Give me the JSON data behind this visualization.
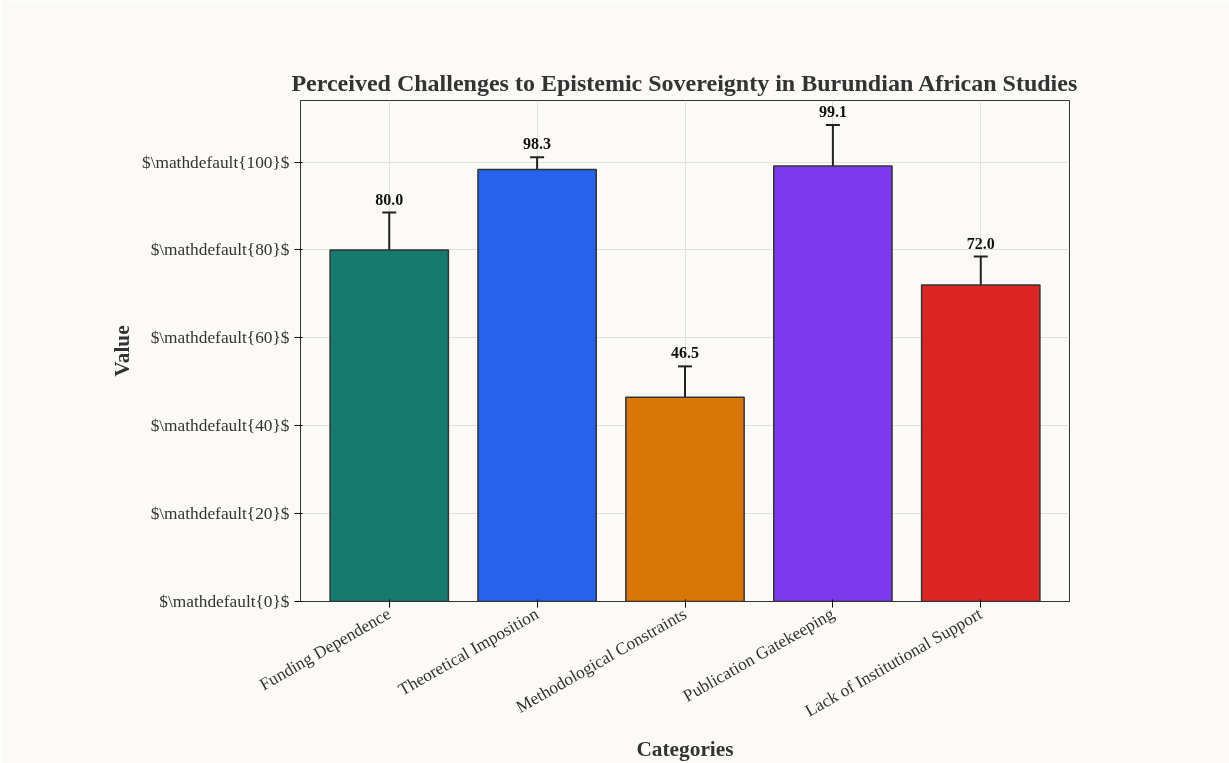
{
  "chart_data": {
    "type": "bar",
    "title": "Perceived Challenges to Epistemic Sovereignty in Burundian African Studies",
    "xlabel": "Categories",
    "ylabel": "Value",
    "categories": [
      "Funding Dependence",
      "Theoretical Imposition",
      "Methodological Constraints",
      "Publication Gatekeeping",
      "Lack of Institutional Support"
    ],
    "values": [
      80.0,
      98.3,
      46.5,
      99.1,
      72.0
    ],
    "errors": [
      8.5,
      2.8,
      7,
      9.3,
      6.5
    ],
    "colors": [
      "#167a6e",
      "#2563eb",
      "#d97706",
      "#7c3aed",
      "#dc2626"
    ],
    "ylim": [
      0,
      114
    ],
    "yticks": [
      {
        "value": 0,
        "label": "$\\mathdefault{0}$"
      },
      {
        "value": 20,
        "label": "$\\mathdefault{20}$"
      },
      {
        "value": 40,
        "label": "$\\mathdefault{40}$"
      },
      {
        "value": 60,
        "label": "$\\mathdefault{60}$"
      },
      {
        "value": 80,
        "label": "$\\mathdefault{80}$"
      },
      {
        "value": 100,
        "label": "$\\mathdefault{100}$"
      }
    ],
    "grid": true,
    "value_labels": [
      "80.0",
      "98.3",
      "46.5",
      "99.1",
      "72.0"
    ]
  }
}
